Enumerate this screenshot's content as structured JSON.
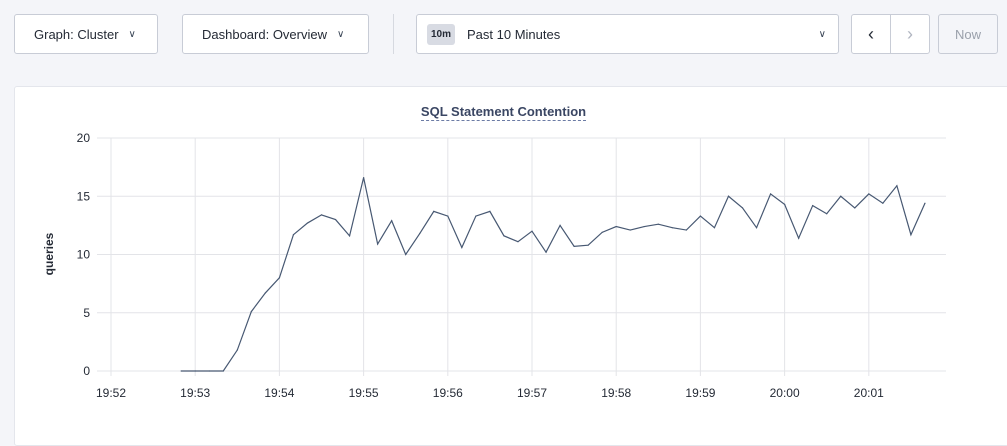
{
  "toolbar": {
    "graph_label": "Graph: Cluster",
    "dashboard_label": "Dashboard: Overview",
    "time_badge": "10m",
    "time_label": "Past 10 Minutes",
    "prev_icon": "‹",
    "next_icon": "›",
    "now_label": "Now"
  },
  "chart_data": {
    "type": "line",
    "title": "SQL Statement Contention",
    "ylabel": "queries",
    "ylim": [
      0,
      20
    ],
    "yticks": [
      "0",
      "5",
      "10",
      "15",
      "20"
    ],
    "xlim": [
      "19:52:00",
      "20:01:55"
    ],
    "xticks": [
      "19:52",
      "19:53",
      "19:54",
      "19:55",
      "19:56",
      "19:57",
      "19:58",
      "19:59",
      "20:00",
      "20:01"
    ],
    "grid": true,
    "line_color": "#475872",
    "x_start": "19:52:50",
    "x_step_seconds": 10,
    "values": [
      0,
      0,
      0,
      0,
      1.8,
      5.1,
      6.7,
      8.0,
      11.7,
      12.7,
      13.4,
      13.0,
      11.6,
      16.6,
      10.9,
      12.9,
      10.0,
      11.8,
      13.7,
      13.3,
      10.6,
      13.3,
      13.7,
      11.6,
      11.1,
      12.0,
      10.2,
      12.5,
      10.7,
      10.8,
      11.9,
      12.4,
      12.1,
      12.4,
      12.6,
      12.3,
      12.1,
      13.3,
      12.3,
      15.0,
      14.0,
      12.3,
      15.2,
      14.3,
      11.4,
      14.2,
      13.5,
      15.0,
      14.0,
      15.2,
      14.4,
      15.9,
      11.7,
      14.4
    ]
  }
}
